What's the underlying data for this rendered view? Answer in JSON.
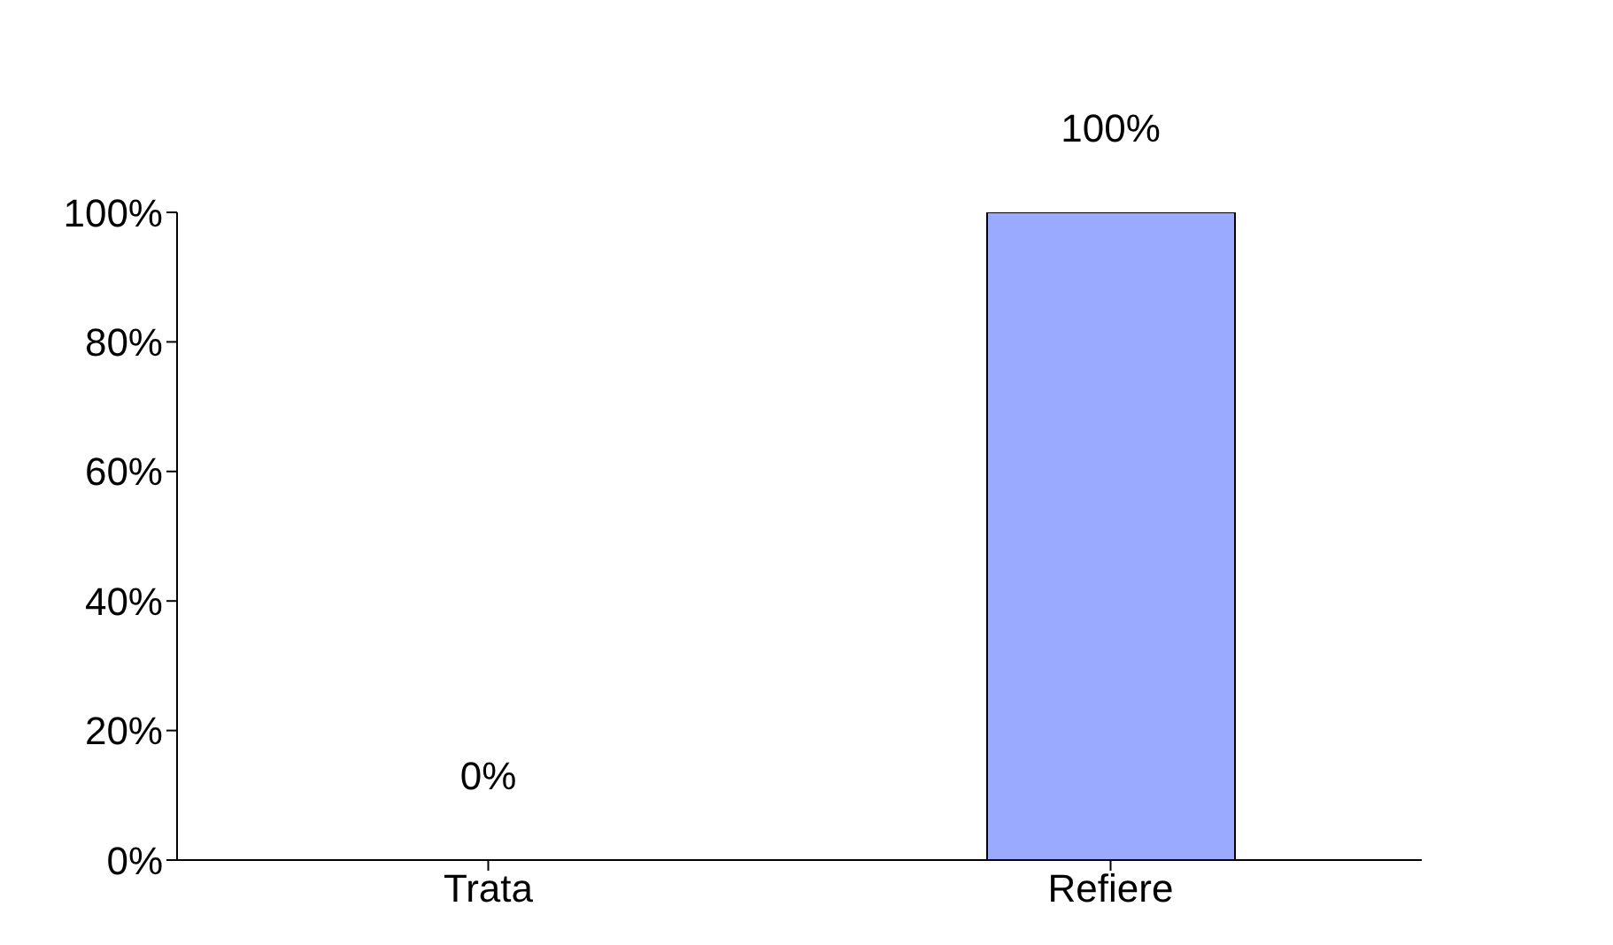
{
  "chart_data": {
    "type": "bar",
    "categories": [
      "Trata",
      "Refiere"
    ],
    "values": [
      0,
      100
    ],
    "colors": [
      "#772244",
      "#99aaff"
    ],
    "value_labels": [
      "0%",
      "100%"
    ],
    "ylim": [
      0,
      100
    ],
    "yticks": [
      {
        "value": 0,
        "label": "0%"
      },
      {
        "value": 20,
        "label": "20%"
      },
      {
        "value": 40,
        "label": "40%"
      },
      {
        "value": 60,
        "label": "60%"
      },
      {
        "value": 80,
        "label": "80%"
      },
      {
        "value": 100,
        "label": "100%"
      }
    ],
    "grid": false,
    "legend": false
  }
}
